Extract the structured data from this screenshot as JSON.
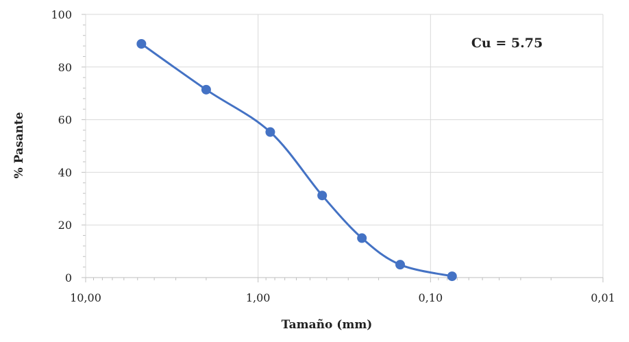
{
  "chart_data": {
    "type": "line",
    "title": "",
    "xlabel": "Tamaño (mm)",
    "ylabel": "% Pasante",
    "x_scale": "log",
    "x_reversed": true,
    "xlim": [
      10,
      0.01
    ],
    "ylim": [
      0,
      100
    ],
    "x_ticks": [
      10,
      1,
      0.1,
      0.01
    ],
    "x_tick_labels": [
      "10,00",
      "1,00",
      "0,10",
      "0,01"
    ],
    "y_ticks": [
      0,
      20,
      40,
      60,
      80,
      100
    ],
    "y_tick_labels": [
      "0",
      "20",
      "40",
      "60",
      "80",
      "100"
    ],
    "grid": true,
    "series": [
      {
        "color": "#4472c4",
        "smooth": true,
        "markers": true,
        "x": [
          4.75,
          2.0,
          0.85,
          0.425,
          0.25,
          0.15,
          0.075
        ],
        "y": [
          88.8,
          71.4,
          55.3,
          31.2,
          15.0,
          4.9,
          0.5
        ]
      }
    ],
    "annotations": [
      {
        "text": "Cu = 5.75",
        "position": "top-right"
      }
    ]
  }
}
